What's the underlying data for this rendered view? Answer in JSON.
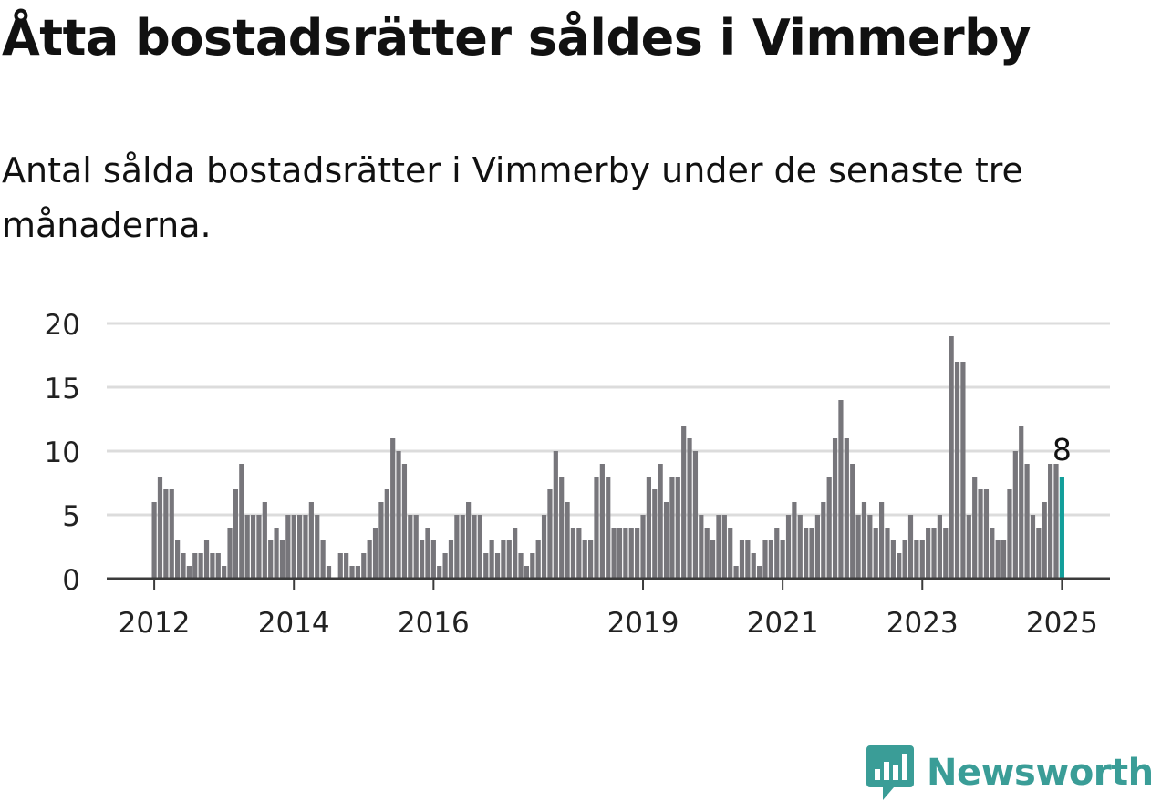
{
  "title": "Åtta bostadsrätter såldes i Vimmerby",
  "subtitle": "Antal sålda bostadsrätter i Vimmerby under de senaste tre månaderna.",
  "brand": {
    "name": "Newsworthy",
    "color": "#3a9d97",
    "icon": "chart-bubble-icon"
  },
  "colors": {
    "bar": "#77767b",
    "highlight": "#129e9a",
    "grid": "#dcdcdc",
    "axis": "#3b3b3b",
    "text": "#222222"
  },
  "chart_data": {
    "type": "bar",
    "start_month": "2012-01",
    "values": [
      6,
      8,
      7,
      7,
      3,
      2,
      1,
      2,
      2,
      3,
      2,
      2,
      1,
      4,
      7,
      9,
      5,
      5,
      5,
      6,
      3,
      4,
      3,
      5,
      5,
      5,
      5,
      6,
      5,
      3,
      1,
      0,
      2,
      2,
      1,
      1,
      2,
      3,
      4,
      6,
      7,
      11,
      10,
      9,
      5,
      5,
      3,
      4,
      3,
      1,
      2,
      3,
      5,
      5,
      6,
      5,
      5,
      2,
      3,
      2,
      3,
      3,
      4,
      2,
      1,
      2,
      3,
      5,
      7,
      10,
      8,
      6,
      4,
      4,
      3,
      3,
      8,
      9,
      8,
      4,
      4,
      4,
      4,
      4,
      5,
      8,
      7,
      9,
      6,
      8,
      8,
      12,
      11,
      10,
      5,
      4,
      3,
      5,
      5,
      4,
      1,
      3,
      3,
      2,
      1,
      3,
      3,
      4,
      3,
      5,
      6,
      5,
      4,
      4,
      5,
      6,
      8,
      11,
      14,
      11,
      9,
      5,
      6,
      5,
      4,
      6,
      4,
      3,
      2,
      3,
      5,
      3,
      3,
      4,
      4,
      5,
      4,
      19,
      17,
      17,
      5,
      8,
      7,
      7,
      4,
      3,
      3,
      7,
      10,
      12,
      9,
      5,
      4,
      6,
      9,
      9,
      8
    ],
    "highlight_index": 156,
    "annotation": "8",
    "x_ticks": [
      {
        "label": "2012",
        "month": "2012-01"
      },
      {
        "label": "2014",
        "month": "2014-01"
      },
      {
        "label": "2016",
        "month": "2016-01"
      },
      {
        "label": "2019",
        "month": "2019-01"
      },
      {
        "label": "2021",
        "month": "2021-01"
      },
      {
        "label": "2023",
        "month": "2023-01"
      },
      {
        "label": "2025",
        "month": "2025-01"
      }
    ],
    "y_ticks": [
      0,
      5,
      10,
      15,
      20
    ],
    "ylim": [
      0,
      20
    ],
    "grid": true,
    "xlabel": "",
    "ylabel": ""
  }
}
